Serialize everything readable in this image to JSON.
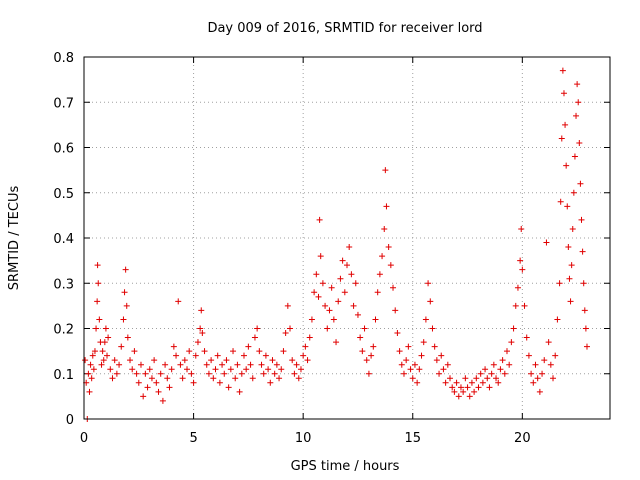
{
  "chart_data": {
    "type": "scatter",
    "title": "Day 009 of 2016, SRMTID for receiver lord",
    "xlabel": "GPS time / hours",
    "ylabel": "SRMTID / TECUs",
    "xlim": [
      0,
      24
    ],
    "ylim": [
      0,
      0.8
    ],
    "xticks": [
      0,
      5,
      10,
      15,
      20
    ],
    "xtick_labels": [
      "0",
      "5",
      "10",
      "15",
      "20"
    ],
    "yticks": [
      0,
      0.1,
      0.2,
      0.3,
      0.4,
      0.5,
      0.6,
      0.7,
      0.8
    ],
    "ytick_labels": [
      "0",
      "0.1",
      "0.2",
      "0.3",
      "0.4",
      "0.5",
      "0.6",
      "0.7",
      "0.8"
    ],
    "grid": true,
    "marker": "+",
    "color": "#e00000",
    "series": [
      {
        "name": "SRMTID",
        "points": [
          [
            0.05,
            0.13
          ],
          [
            0.1,
            0.08
          ],
          [
            0.15,
            0.0
          ],
          [
            0.2,
            0.1
          ],
          [
            0.25,
            0.06
          ],
          [
            0.3,
            0.12
          ],
          [
            0.35,
            0.09
          ],
          [
            0.4,
            0.14
          ],
          [
            0.45,
            0.11
          ],
          [
            0.5,
            0.15
          ],
          [
            0.55,
            0.2
          ],
          [
            0.6,
            0.26
          ],
          [
            0.62,
            0.34
          ],
          [
            0.65,
            0.3
          ],
          [
            0.7,
            0.22
          ],
          [
            0.75,
            0.17
          ],
          [
            0.8,
            0.12
          ],
          [
            0.85,
            0.15
          ],
          [
            0.9,
            0.13
          ],
          [
            0.95,
            0.17
          ],
          [
            1.0,
            0.2
          ],
          [
            1.05,
            0.14
          ],
          [
            1.1,
            0.18
          ],
          [
            1.2,
            0.11
          ],
          [
            1.3,
            0.09
          ],
          [
            1.4,
            0.13
          ],
          [
            1.5,
            0.1
          ],
          [
            1.6,
            0.12
          ],
          [
            1.7,
            0.16
          ],
          [
            1.8,
            0.22
          ],
          [
            1.85,
            0.28
          ],
          [
            1.9,
            0.33
          ],
          [
            1.95,
            0.25
          ],
          [
            2.0,
            0.18
          ],
          [
            2.1,
            0.13
          ],
          [
            2.2,
            0.11
          ],
          [
            2.3,
            0.15
          ],
          [
            2.4,
            0.1
          ],
          [
            2.5,
            0.08
          ],
          [
            2.6,
            0.12
          ],
          [
            2.7,
            0.05
          ],
          [
            2.8,
            0.1
          ],
          [
            2.9,
            0.07
          ],
          [
            3.0,
            0.11
          ],
          [
            3.1,
            0.09
          ],
          [
            3.2,
            0.13
          ],
          [
            3.3,
            0.08
          ],
          [
            3.4,
            0.06
          ],
          [
            3.5,
            0.1
          ],
          [
            3.6,
            0.04
          ],
          [
            3.7,
            0.12
          ],
          [
            3.8,
            0.09
          ],
          [
            3.9,
            0.07
          ],
          [
            4.0,
            0.11
          ],
          [
            4.1,
            0.16
          ],
          [
            4.2,
            0.14
          ],
          [
            4.3,
            0.26
          ],
          [
            4.4,
            0.12
          ],
          [
            4.5,
            0.09
          ],
          [
            4.6,
            0.13
          ],
          [
            4.7,
            0.11
          ],
          [
            4.8,
            0.15
          ],
          [
            4.9,
            0.1
          ],
          [
            5.0,
            0.08
          ],
          [
            5.1,
            0.14
          ],
          [
            5.2,
            0.17
          ],
          [
            5.3,
            0.2
          ],
          [
            5.35,
            0.24
          ],
          [
            5.4,
            0.19
          ],
          [
            5.5,
            0.15
          ],
          [
            5.6,
            0.12
          ],
          [
            5.7,
            0.1
          ],
          [
            5.8,
            0.13
          ],
          [
            5.9,
            0.09
          ],
          [
            6.0,
            0.11
          ],
          [
            6.1,
            0.14
          ],
          [
            6.2,
            0.08
          ],
          [
            6.3,
            0.12
          ],
          [
            6.4,
            0.1
          ],
          [
            6.5,
            0.13
          ],
          [
            6.6,
            0.07
          ],
          [
            6.7,
            0.11
          ],
          [
            6.8,
            0.15
          ],
          [
            6.9,
            0.09
          ],
          [
            7.0,
            0.12
          ],
          [
            7.1,
            0.06
          ],
          [
            7.2,
            0.1
          ],
          [
            7.3,
            0.14
          ],
          [
            7.4,
            0.11
          ],
          [
            7.5,
            0.16
          ],
          [
            7.6,
            0.12
          ],
          [
            7.7,
            0.09
          ],
          [
            7.8,
            0.18
          ],
          [
            7.9,
            0.2
          ],
          [
            8.0,
            0.15
          ],
          [
            8.1,
            0.12
          ],
          [
            8.2,
            0.1
          ],
          [
            8.3,
            0.14
          ],
          [
            8.4,
            0.11
          ],
          [
            8.5,
            0.08
          ],
          [
            8.6,
            0.13
          ],
          [
            8.7,
            0.1
          ],
          [
            8.8,
            0.12
          ],
          [
            8.9,
            0.09
          ],
          [
            9.0,
            0.11
          ],
          [
            9.1,
            0.15
          ],
          [
            9.2,
            0.19
          ],
          [
            9.3,
            0.25
          ],
          [
            9.4,
            0.2
          ],
          [
            9.5,
            0.13
          ],
          [
            9.6,
            0.1
          ],
          [
            9.7,
            0.12
          ],
          [
            9.8,
            0.09
          ],
          [
            9.9,
            0.11
          ],
          [
            10.0,
            0.14
          ],
          [
            10.1,
            0.16
          ],
          [
            10.2,
            0.13
          ],
          [
            10.3,
            0.18
          ],
          [
            10.4,
            0.22
          ],
          [
            10.5,
            0.28
          ],
          [
            10.6,
            0.32
          ],
          [
            10.7,
            0.27
          ],
          [
            10.75,
            0.44
          ],
          [
            10.8,
            0.36
          ],
          [
            10.9,
            0.3
          ],
          [
            11.0,
            0.25
          ],
          [
            11.1,
            0.2
          ],
          [
            11.2,
            0.24
          ],
          [
            11.3,
            0.29
          ],
          [
            11.4,
            0.22
          ],
          [
            11.5,
            0.17
          ],
          [
            11.6,
            0.26
          ],
          [
            11.7,
            0.31
          ],
          [
            11.8,
            0.35
          ],
          [
            11.9,
            0.28
          ],
          [
            12.0,
            0.34
          ],
          [
            12.1,
            0.38
          ],
          [
            12.2,
            0.32
          ],
          [
            12.3,
            0.25
          ],
          [
            12.4,
            0.3
          ],
          [
            12.5,
            0.23
          ],
          [
            12.6,
            0.18
          ],
          [
            12.7,
            0.15
          ],
          [
            12.8,
            0.2
          ],
          [
            12.9,
            0.13
          ],
          [
            13.0,
            0.1
          ],
          [
            13.1,
            0.14
          ],
          [
            13.2,
            0.16
          ],
          [
            13.3,
            0.22
          ],
          [
            13.4,
            0.28
          ],
          [
            13.5,
            0.32
          ],
          [
            13.6,
            0.36
          ],
          [
            13.7,
            0.42
          ],
          [
            13.75,
            0.55
          ],
          [
            13.8,
            0.47
          ],
          [
            13.9,
            0.38
          ],
          [
            14.0,
            0.34
          ],
          [
            14.1,
            0.29
          ],
          [
            14.2,
            0.24
          ],
          [
            14.3,
            0.19
          ],
          [
            14.4,
            0.15
          ],
          [
            14.5,
            0.12
          ],
          [
            14.6,
            0.1
          ],
          [
            14.7,
            0.13
          ],
          [
            14.8,
            0.16
          ],
          [
            14.9,
            0.11
          ],
          [
            15.0,
            0.09
          ],
          [
            15.1,
            0.12
          ],
          [
            15.2,
            0.08
          ],
          [
            15.3,
            0.11
          ],
          [
            15.4,
            0.14
          ],
          [
            15.5,
            0.17
          ],
          [
            15.6,
            0.22
          ],
          [
            15.7,
            0.3
          ],
          [
            15.8,
            0.26
          ],
          [
            15.9,
            0.2
          ],
          [
            16.0,
            0.16
          ],
          [
            16.1,
            0.13
          ],
          [
            16.2,
            0.1
          ],
          [
            16.3,
            0.14
          ],
          [
            16.4,
            0.11
          ],
          [
            16.5,
            0.08
          ],
          [
            16.6,
            0.12
          ],
          [
            16.7,
            0.09
          ],
          [
            16.8,
            0.07
          ],
          [
            16.9,
            0.06
          ],
          [
            17.0,
            0.08
          ],
          [
            17.1,
            0.05
          ],
          [
            17.2,
            0.07
          ],
          [
            17.3,
            0.06
          ],
          [
            17.4,
            0.09
          ],
          [
            17.5,
            0.07
          ],
          [
            17.6,
            0.05
          ],
          [
            17.7,
            0.08
          ],
          [
            17.8,
            0.06
          ],
          [
            17.9,
            0.09
          ],
          [
            18.0,
            0.07
          ],
          [
            18.1,
            0.1
          ],
          [
            18.2,
            0.08
          ],
          [
            18.3,
            0.11
          ],
          [
            18.4,
            0.09
          ],
          [
            18.5,
            0.07
          ],
          [
            18.6,
            0.1
          ],
          [
            18.7,
            0.12
          ],
          [
            18.8,
            0.09
          ],
          [
            18.9,
            0.08
          ],
          [
            19.0,
            0.11
          ],
          [
            19.1,
            0.13
          ],
          [
            19.2,
            0.1
          ],
          [
            19.3,
            0.15
          ],
          [
            19.4,
            0.12
          ],
          [
            19.5,
            0.17
          ],
          [
            19.6,
            0.2
          ],
          [
            19.7,
            0.25
          ],
          [
            19.8,
            0.29
          ],
          [
            19.9,
            0.35
          ],
          [
            19.95,
            0.42
          ],
          [
            20.0,
            0.33
          ],
          [
            20.1,
            0.25
          ],
          [
            20.2,
            0.18
          ],
          [
            20.3,
            0.14
          ],
          [
            20.4,
            0.1
          ],
          [
            20.5,
            0.08
          ],
          [
            20.6,
            0.12
          ],
          [
            20.7,
            0.09
          ],
          [
            20.8,
            0.06
          ],
          [
            20.9,
            0.1
          ],
          [
            21.0,
            0.13
          ],
          [
            21.1,
            0.39
          ],
          [
            21.2,
            0.17
          ],
          [
            21.3,
            0.12
          ],
          [
            21.4,
            0.09
          ],
          [
            21.5,
            0.14
          ],
          [
            21.6,
            0.22
          ],
          [
            21.7,
            0.3
          ],
          [
            21.75,
            0.48
          ],
          [
            21.8,
            0.62
          ],
          [
            21.85,
            0.77
          ],
          [
            21.9,
            0.72
          ],
          [
            21.95,
            0.65
          ],
          [
            22.0,
            0.56
          ],
          [
            22.05,
            0.47
          ],
          [
            22.1,
            0.38
          ],
          [
            22.15,
            0.31
          ],
          [
            22.2,
            0.26
          ],
          [
            22.25,
            0.34
          ],
          [
            22.3,
            0.42
          ],
          [
            22.35,
            0.5
          ],
          [
            22.4,
            0.58
          ],
          [
            22.45,
            0.67
          ],
          [
            22.5,
            0.74
          ],
          [
            22.55,
            0.7
          ],
          [
            22.6,
            0.61
          ],
          [
            22.65,
            0.52
          ],
          [
            22.7,
            0.44
          ],
          [
            22.75,
            0.37
          ],
          [
            22.8,
            0.3
          ],
          [
            22.85,
            0.24
          ],
          [
            22.9,
            0.2
          ],
          [
            22.95,
            0.16
          ]
        ]
      }
    ]
  }
}
